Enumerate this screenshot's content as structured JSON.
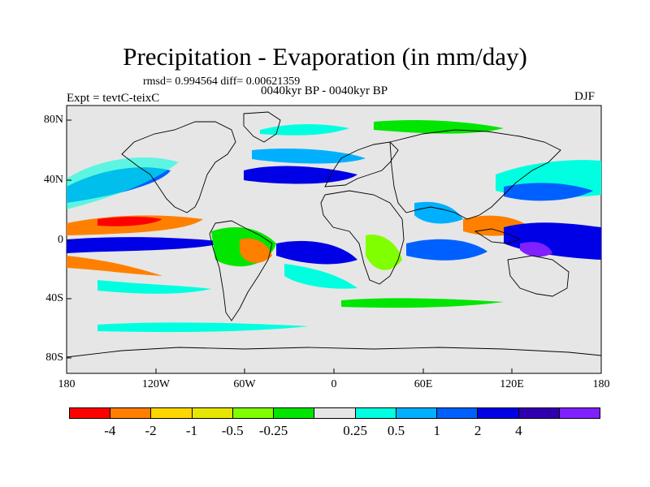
{
  "title": "Precipitation - Evaporation (in mm/day)",
  "stats": "rmsd= 0.994564 diff= 0.00621359",
  "period": "0040kyr BP - 0040kyr BP",
  "experiment": "Expt = tevtC-teixC",
  "season": "DJF",
  "lat_labels": [
    "80N",
    "40N",
    "0",
    "40S",
    "80S"
  ],
  "lon_labels": [
    "180",
    "120W",
    "60W",
    "0",
    "60E",
    "120E",
    "180"
  ],
  "colorbar": {
    "colors": [
      "#ff0000",
      "#ff8000",
      "#ffd700",
      "#e6e600",
      "#80ff00",
      "#00e600",
      "#e6e6e6",
      "#00ffe0",
      "#00b0ff",
      "#0060ff",
      "#0000e6",
      "#3000b0",
      "#8020ff"
    ],
    "labels": [
      "-4",
      "-2",
      "-1",
      "-0.5",
      "-0.25",
      "0.25",
      "0.5",
      "1",
      "2",
      "4"
    ]
  },
  "colors": {
    "land_background": "#e6e6e6",
    "coastline": "#000000"
  }
}
